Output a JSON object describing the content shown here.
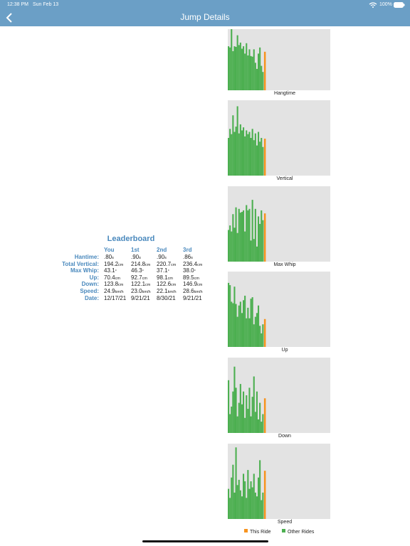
{
  "status": {
    "time": "12:38 PM",
    "date": "Sun Feb 13",
    "battery": "100%"
  },
  "nav": {
    "title": "Jump Details"
  },
  "leaderboard": {
    "title": "Leaderboard",
    "columns": [
      "You",
      "1st",
      "2nd",
      "3rd"
    ],
    "rows": [
      {
        "label": "Hantime:",
        "cells": [
          [
            ".80",
            "s"
          ],
          [
            ".90",
            "s"
          ],
          [
            ".90",
            "s"
          ],
          [
            ".86",
            "s"
          ]
        ]
      },
      {
        "label": "Total Vertical:",
        "cells": [
          [
            "194.2",
            "cm"
          ],
          [
            "214.8",
            "cm"
          ],
          [
            "220.7",
            "cm"
          ],
          [
            "236.4",
            "cm"
          ]
        ]
      },
      {
        "label": "Max Whip:",
        "cells": [
          [
            "43.1",
            "°"
          ],
          [
            "46.3",
            "°"
          ],
          [
            "37.1",
            "°"
          ],
          [
            "38.0",
            "°"
          ]
        ]
      },
      {
        "label": "Up:",
        "cells": [
          [
            "70.4",
            "cm"
          ],
          [
            "92.7",
            "cm"
          ],
          [
            "98.1",
            "cm"
          ],
          [
            "89.5",
            "cm"
          ]
        ]
      },
      {
        "label": "Down:",
        "cells": [
          [
            "123.8",
            "cm"
          ],
          [
            "122.1",
            "cm"
          ],
          [
            "122.6",
            "cm"
          ],
          [
            "146.9",
            "cm"
          ]
        ]
      },
      {
        "label": "Speed:",
        "cells": [
          [
            "24.9",
            "km/h"
          ],
          [
            "23.0",
            "km/h"
          ],
          [
            "22.1",
            "km/h"
          ],
          [
            "28.6",
            "km/h"
          ]
        ]
      },
      {
        "label": "Date:",
        "cells": [
          [
            "12/17/21"
          ],
          [
            "9/21/21"
          ],
          [
            "8/30/21"
          ],
          [
            "9/21/21"
          ]
        ]
      }
    ]
  },
  "legend": [
    {
      "name": "This Ride",
      "color": "#f7931e"
    },
    {
      "name": "Other Rides",
      "color": "#4caf50"
    }
  ],
  "chart_data": [
    {
      "type": "bar",
      "xlabel": "Hangtime",
      "ylim": [
        0,
        100
      ],
      "this_ride": 63,
      "values": [
        72,
        70,
        100,
        64,
        72,
        71,
        90,
        74,
        78,
        68,
        72,
        60,
        77,
        57,
        67,
        56,
        55,
        67,
        45,
        35,
        60,
        70,
        40,
        30
      ]
    },
    {
      "type": "bar",
      "xlabel": "Vertical",
      "ylim": [
        0,
        100
      ],
      "this_ride": 49,
      "values": [
        50,
        62,
        55,
        80,
        58,
        65,
        92,
        56,
        68,
        60,
        64,
        52,
        60,
        55,
        58,
        50,
        62,
        47,
        56,
        40,
        58,
        45,
        50,
        38
      ]
    },
    {
      "type": "bar",
      "xlabel": "Max Whip",
      "ylim": [
        0,
        100
      ],
      "this_ride": 64,
      "values": [
        42,
        48,
        40,
        63,
        45,
        72,
        38,
        70,
        65,
        66,
        68,
        40,
        75,
        68,
        70,
        28,
        82,
        30,
        70,
        20,
        60,
        50,
        68,
        55
      ]
    },
    {
      "type": "bar",
      "xlabel": "Up",
      "ylim": [
        0,
        100
      ],
      "this_ride": 37,
      "values": [
        85,
        82,
        60,
        58,
        80,
        57,
        40,
        55,
        60,
        45,
        62,
        68,
        38,
        52,
        38,
        64,
        66,
        30,
        40,
        45,
        55,
        28,
        18,
        30
      ]
    },
    {
      "type": "bar",
      "xlabel": "Down",
      "ylim": [
        0,
        100
      ],
      "this_ride": 46,
      "values": [
        70,
        25,
        35,
        55,
        88,
        60,
        22,
        40,
        65,
        38,
        55,
        20,
        50,
        32,
        60,
        22,
        48,
        75,
        28,
        55,
        18,
        40,
        15,
        25
      ]
    },
    {
      "type": "bar",
      "xlabel": "Speed",
      "ylim": [
        0,
        100
      ],
      "this_ride": 64,
      "values": [
        40,
        28,
        55,
        72,
        35,
        95,
        45,
        52,
        38,
        30,
        60,
        50,
        28,
        65,
        40,
        50,
        42,
        60,
        35,
        30,
        55,
        78,
        25,
        35
      ]
    }
  ]
}
